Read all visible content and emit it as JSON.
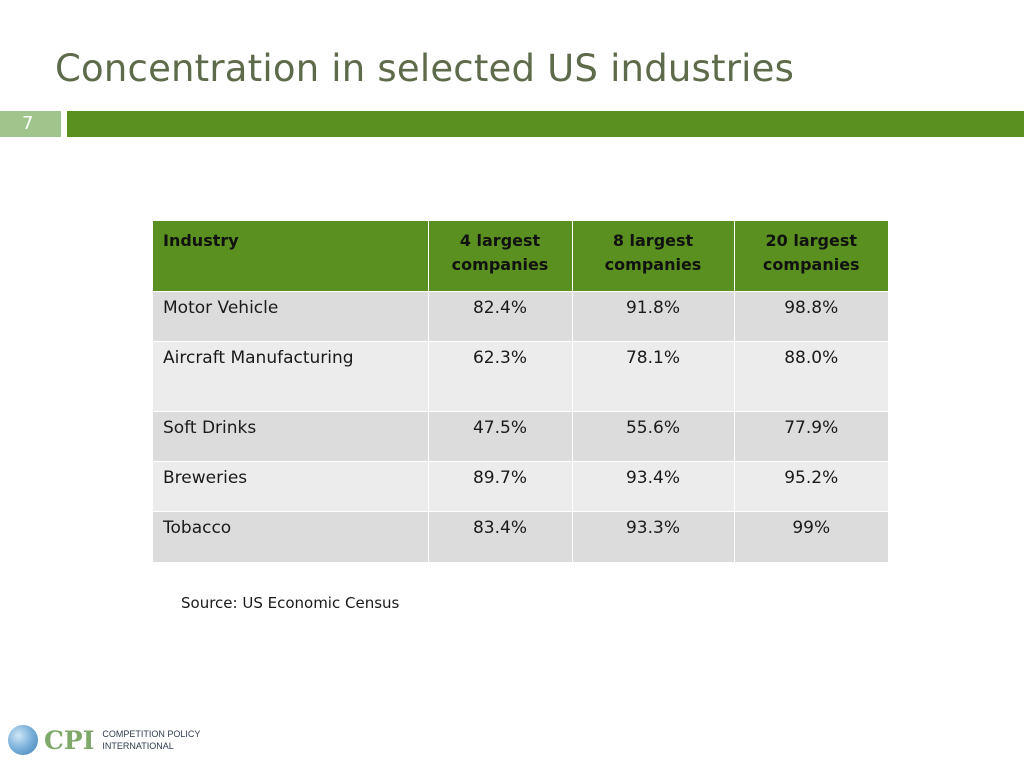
{
  "slide": {
    "title": "Concentration in selected US industries",
    "number": "7"
  },
  "table": {
    "headers": [
      "Industry",
      "4 largest companies",
      "8 largest companies",
      "20 largest companies"
    ],
    "rows": [
      {
        "industry": "Motor Vehicle",
        "top4": "82.4%",
        "top8": "91.8%",
        "top20": "98.8%"
      },
      {
        "industry": "Aircraft Manufacturing",
        "top4": "62.3%",
        "top8": "78.1%",
        "top20": "88.0%"
      },
      {
        "industry": "Soft Drinks",
        "top4": "47.5%",
        "top8": "55.6%",
        "top20": "77.9%"
      },
      {
        "industry": "Breweries",
        "top4": "89.7%",
        "top8": "93.4%",
        "top20": "95.2%"
      },
      {
        "industry": "Tobacco",
        "top4": "83.4%",
        "top8": "93.3%",
        "top20": "99%"
      }
    ]
  },
  "source": "Source: US Economic Census",
  "logo": {
    "letters": "CPI",
    "line1": "Competition Policy",
    "line2": "International"
  },
  "colors": {
    "accent_green": "#5a901f",
    "light_green": "#9fc58c",
    "title_color": "#5e6b4a"
  }
}
